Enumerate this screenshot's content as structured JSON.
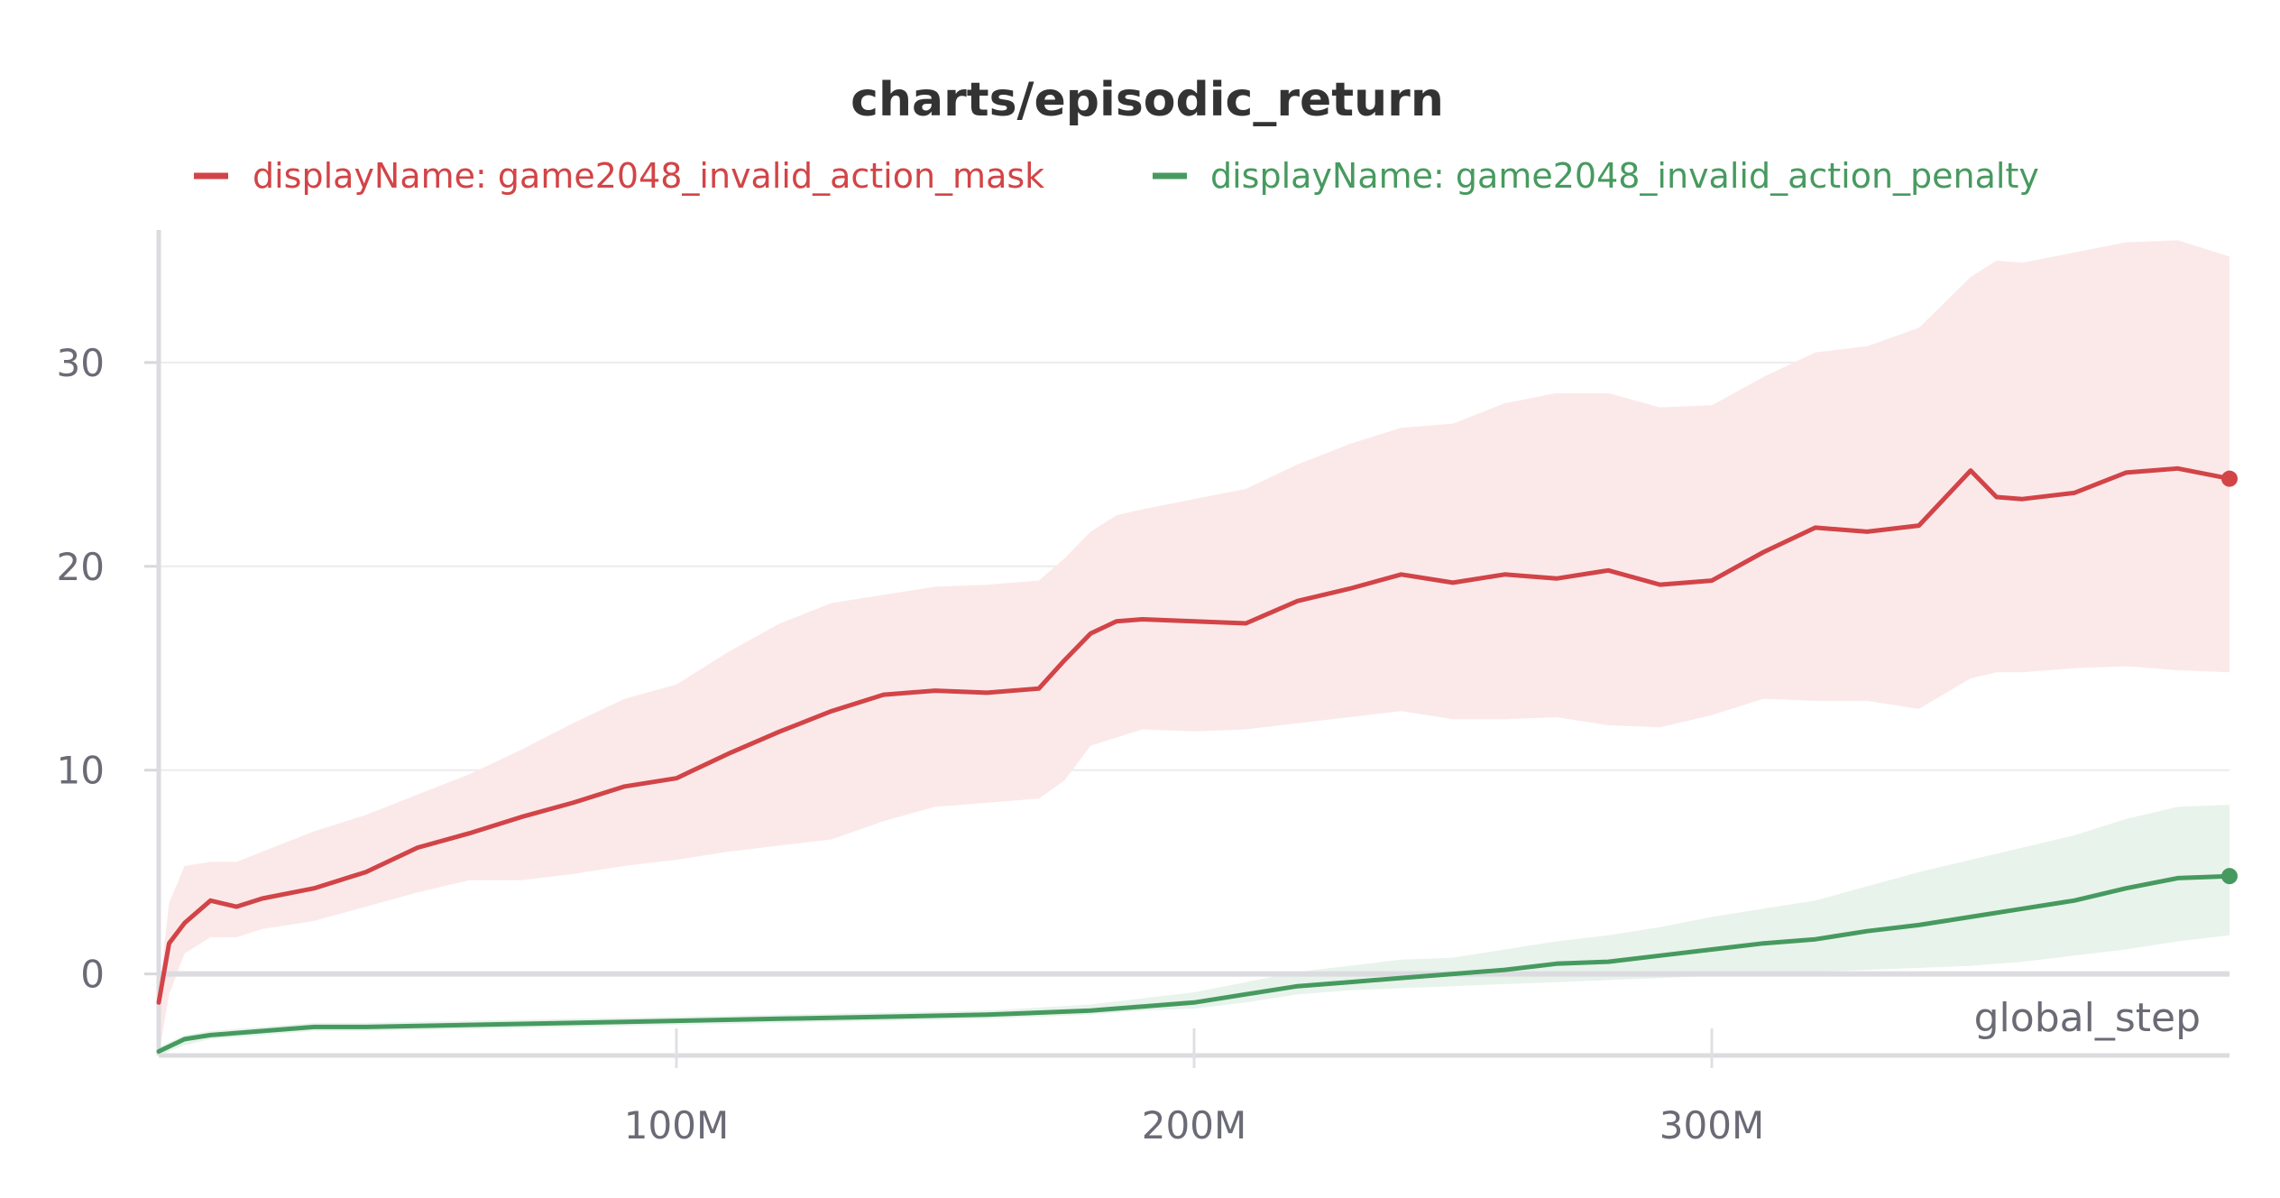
{
  "chart_data": {
    "type": "line",
    "title": "charts/episodic_return",
    "xlabel": "global_step",
    "ylabel": "",
    "xlim": [
      0,
      400000000
    ],
    "ylim": [
      -4,
      36.5
    ],
    "x_ticks": [
      {
        "value": 100000000,
        "label": "100M"
      },
      {
        "value": 200000000,
        "label": "200M"
      },
      {
        "value": 300000000,
        "label": "300M"
      }
    ],
    "y_ticks": [
      {
        "value": 0,
        "label": "0"
      },
      {
        "value": 10,
        "label": "10"
      },
      {
        "value": 20,
        "label": "20"
      },
      {
        "value": 30,
        "label": "30"
      }
    ],
    "grid": "horizontal",
    "legend_position": "top",
    "series": [
      {
        "name": "displayName: game2048_invalid_action_mask",
        "color": "#d24447",
        "band_color": "#fbe9ea",
        "x": [
          0,
          2000000,
          5000000,
          10000000,
          15000000,
          20000000,
          30000000,
          40000000,
          50000000,
          60000000,
          70000000,
          80000000,
          90000000,
          100000000,
          110000000,
          120000000,
          130000000,
          140000000,
          150000000,
          160000000,
          170000000,
          175000000,
          180000000,
          185000000,
          190000000,
          200000000,
          210000000,
          220000000,
          230000000,
          240000000,
          250000000,
          260000000,
          270000000,
          280000000,
          290000000,
          300000000,
          310000000,
          320000000,
          330000000,
          340000000,
          350000000,
          355000000,
          360000000,
          370000000,
          380000000,
          390000000,
          400000000
        ],
        "y": [
          -1.4,
          1.5,
          2.5,
          3.6,
          3.3,
          3.7,
          4.2,
          5.0,
          6.2,
          6.9,
          7.7,
          8.4,
          9.2,
          9.6,
          10.8,
          11.9,
          12.9,
          13.7,
          13.9,
          13.8,
          14.0,
          15.4,
          16.7,
          17.3,
          17.4,
          17.3,
          17.2,
          18.3,
          18.9,
          19.6,
          19.2,
          19.6,
          19.4,
          19.8,
          19.1,
          19.3,
          20.7,
          21.9,
          21.7,
          22.0,
          24.7,
          23.4,
          23.3,
          23.6,
          24.6,
          24.8,
          24.3
        ],
        "lower": [
          -4.0,
          -1.0,
          1.0,
          1.8,
          1.8,
          2.2,
          2.6,
          3.3,
          4.0,
          4.6,
          4.6,
          4.9,
          5.3,
          5.6,
          6.0,
          6.3,
          6.6,
          7.5,
          8.2,
          8.4,
          8.6,
          9.5,
          11.2,
          11.6,
          12.0,
          11.9,
          12.0,
          12.3,
          12.6,
          12.9,
          12.5,
          12.5,
          12.6,
          12.2,
          12.1,
          12.7,
          13.5,
          13.4,
          13.4,
          13.0,
          14.5,
          14.8,
          14.8,
          15.0,
          15.1,
          14.9,
          14.8
        ],
        "upper": [
          -1.0,
          3.5,
          5.3,
          5.5,
          5.5,
          6.0,
          7.0,
          7.8,
          8.8,
          9.8,
          11.0,
          12.3,
          13.5,
          14.2,
          15.8,
          17.2,
          18.2,
          18.6,
          19.0,
          19.1,
          19.3,
          20.4,
          21.7,
          22.5,
          22.8,
          23.3,
          23.8,
          25.0,
          26.0,
          26.8,
          27.0,
          28.0,
          28.5,
          28.5,
          27.8,
          27.9,
          29.3,
          30.5,
          30.8,
          31.7,
          34.2,
          35.0,
          34.9,
          35.4,
          35.9,
          36.0,
          35.2
        ]
      },
      {
        "name": "displayName: game2048_invalid_action_penalty",
        "color": "#479a5f",
        "band_color": "#e8f3ec",
        "x": [
          0,
          5000000,
          10000000,
          20000000,
          30000000,
          40000000,
          60000000,
          80000000,
          100000000,
          120000000,
          140000000,
          160000000,
          180000000,
          190000000,
          200000000,
          210000000,
          220000000,
          230000000,
          240000000,
          250000000,
          260000000,
          270000000,
          280000000,
          290000000,
          300000000,
          310000000,
          320000000,
          330000000,
          340000000,
          350000000,
          360000000,
          370000000,
          380000000,
          390000000,
          400000000
        ],
        "y": [
          -3.8,
          -3.2,
          -3.0,
          -2.8,
          -2.6,
          -2.6,
          -2.5,
          -2.4,
          -2.3,
          -2.2,
          -2.1,
          -2.0,
          -1.8,
          -1.6,
          -1.4,
          -1.0,
          -0.6,
          -0.4,
          -0.2,
          0.0,
          0.2,
          0.5,
          0.6,
          0.9,
          1.2,
          1.5,
          1.7,
          2.1,
          2.4,
          2.8,
          3.2,
          3.6,
          4.2,
          4.7,
          4.8
        ],
        "lower": [
          -4.0,
          -3.5,
          -3.2,
          -3.0,
          -2.8,
          -2.8,
          -2.7,
          -2.6,
          -2.5,
          -2.4,
          -2.3,
          -2.2,
          -2.0,
          -1.8,
          -1.7,
          -1.4,
          -1.0,
          -0.8,
          -0.7,
          -0.6,
          -0.5,
          -0.4,
          -0.3,
          -0.2,
          -0.1,
          0.1,
          0.1,
          0.2,
          0.3,
          0.4,
          0.6,
          0.9,
          1.2,
          1.6,
          1.9
        ],
        "upper": [
          -3.6,
          -3.0,
          -2.8,
          -2.6,
          -2.4,
          -2.4,
          -2.3,
          -2.2,
          -2.1,
          -2.0,
          -1.9,
          -1.8,
          -1.5,
          -1.2,
          -0.9,
          -0.4,
          0.1,
          0.4,
          0.7,
          0.8,
          1.2,
          1.6,
          1.9,
          2.3,
          2.8,
          3.2,
          3.6,
          4.3,
          5.0,
          5.6,
          6.2,
          6.8,
          7.6,
          8.2,
          8.3
        ]
      }
    ]
  }
}
